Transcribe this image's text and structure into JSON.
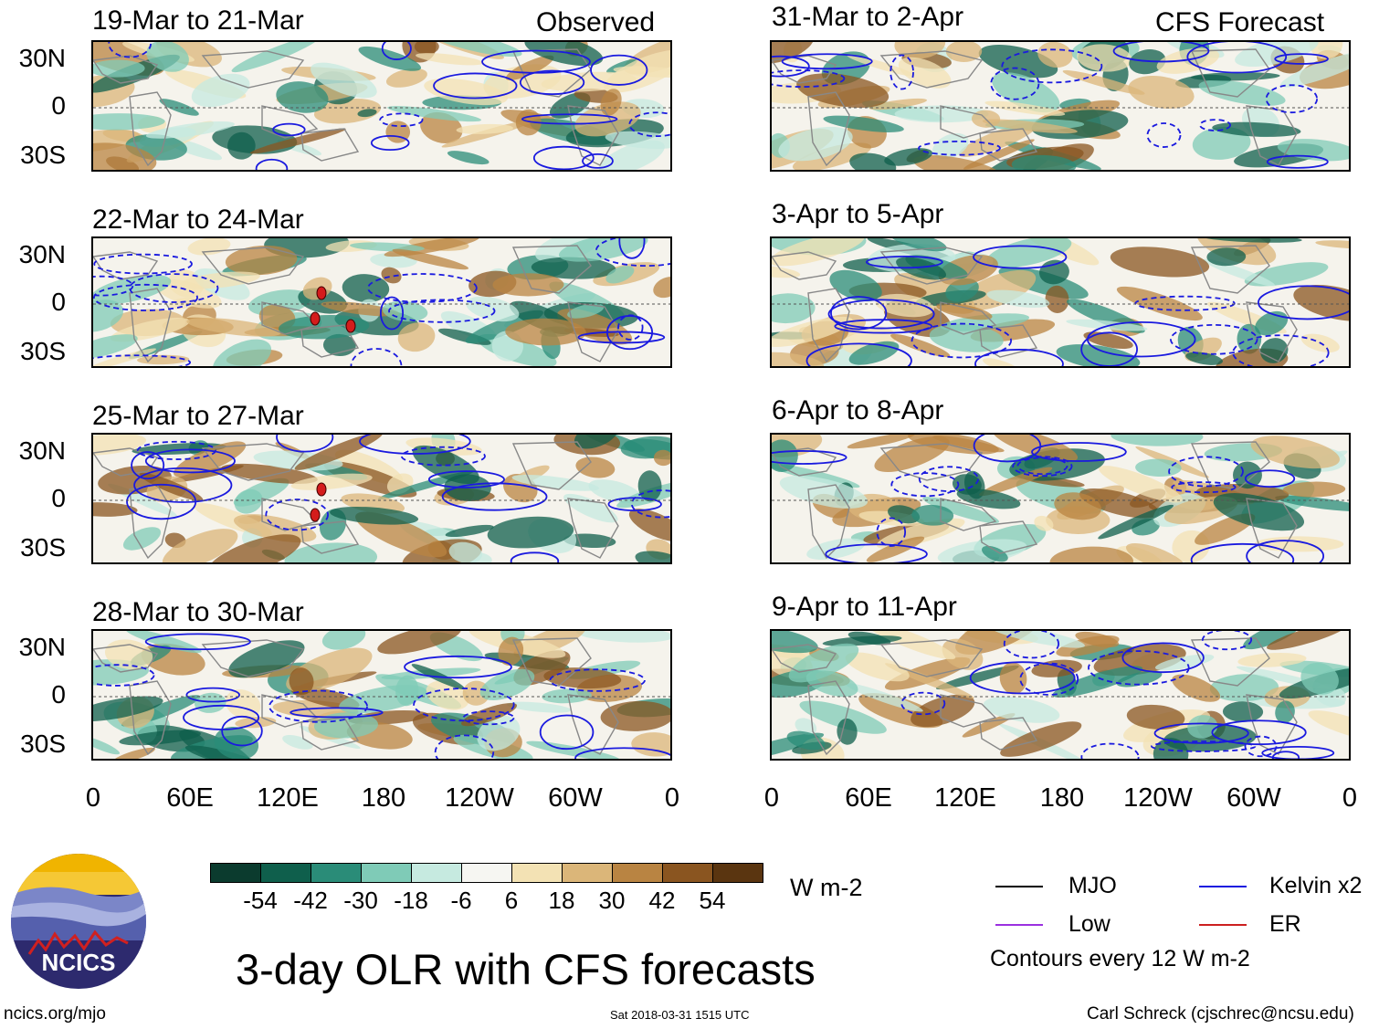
{
  "columns": {
    "left_header": "Observed",
    "right_header": "CFS Forecast"
  },
  "panels_left": [
    {
      "title": "19-Mar to 21-Mar",
      "tc_markers": 0
    },
    {
      "title": "22-Mar to 24-Mar",
      "tc_markers": 3
    },
    {
      "title": "25-Mar to 27-Mar",
      "tc_markers": 2
    },
    {
      "title": "28-Mar to 30-Mar",
      "tc_markers": 0
    }
  ],
  "panels_right": [
    {
      "title": "31-Mar to 2-Apr"
    },
    {
      "title": "3-Apr to 5-Apr"
    },
    {
      "title": "6-Apr to 8-Apr"
    },
    {
      "title": "9-Apr to 11-Apr"
    }
  ],
  "y_axis_labels": [
    "30N",
    "0",
    "30S"
  ],
  "x_axis_labels": [
    "0",
    "60E",
    "120E",
    "180",
    "120W",
    "60W",
    "0"
  ],
  "colorbar": {
    "colors": [
      "#0b3b2e",
      "#0f5f4c",
      "#2a8c78",
      "#7fcbb7",
      "#c6eae0",
      "#f6f6f2",
      "#f3e2b4",
      "#dbb679",
      "#b98442",
      "#8a5520",
      "#5a3510"
    ],
    "labels": [
      "-54",
      "-42",
      "-30",
      "-18",
      "-6",
      "6",
      "18",
      "30",
      "42",
      "54"
    ],
    "units": "W m-2"
  },
  "legend": {
    "items": [
      {
        "label": "MJO",
        "color": "#000000"
      },
      {
        "label": "Kelvin x2",
        "color": "#1a1adf"
      },
      {
        "label": "Low",
        "color": "#9b30e0"
      },
      {
        "label": "ER",
        "color": "#cc2020"
      }
    ],
    "note": "Contours every 12 W m-2"
  },
  "title": "3-day OLR with CFS forecasts",
  "logo_text": "NCICS",
  "footer": {
    "url": "ncics.org/mjo",
    "timestamp": "Sat 2018-03-31 1515 UTC",
    "credit": "Carl Schreck (cjschrec@ncsu.edu)"
  }
}
